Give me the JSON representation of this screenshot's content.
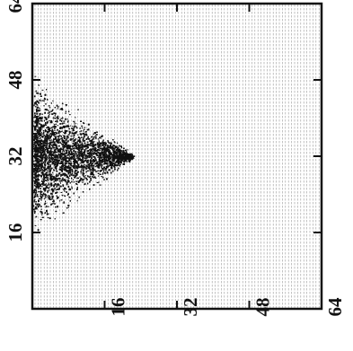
{
  "chart_data": {
    "type": "heatmap",
    "title": "",
    "xlabel": "",
    "ylabel": "",
    "x_ticks": [
      "64",
      "48",
      "32",
      "16"
    ],
    "y_ticks": [
      "16",
      "32",
      "48",
      "64"
    ],
    "xlim": [
      64,
      0
    ],
    "ylim": [
      0,
      64
    ],
    "grid": false,
    "colors": {
      "ink": "#111111",
      "background": "#ffffff"
    },
    "density_region": {
      "description_units": "data",
      "center_x": 32,
      "base_y": 0,
      "peak_y": 22,
      "half_width_at_base": 18
    }
  }
}
